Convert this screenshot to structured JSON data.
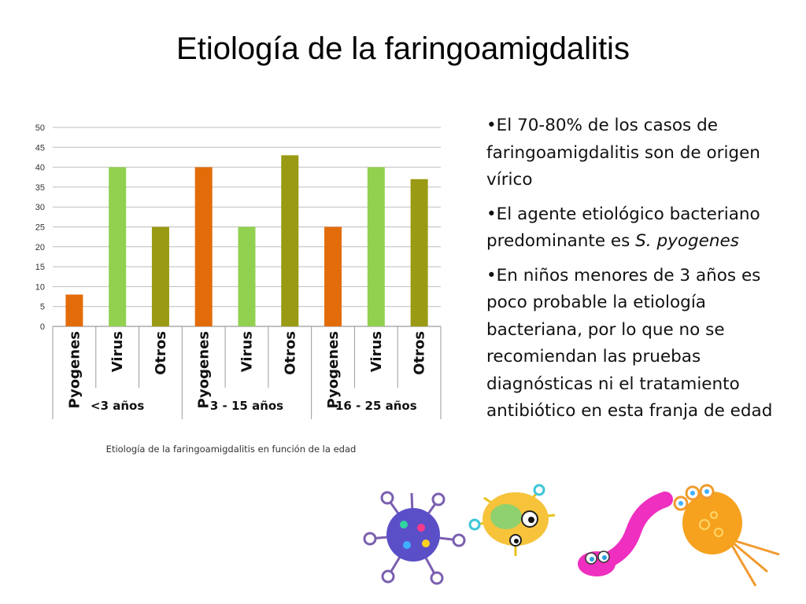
{
  "slide": {
    "title": "Etiología de la faringoamigdalitis"
  },
  "bullets": [
    {
      "text": "•El 70-80% de los casos de faringoamigdalitis son de origen vírico"
    },
    {
      "text": "•El agente etiológico bacteriano predominante es ",
      "emphasis": "S. pyogenes"
    },
    {
      "text": "•En niños menores de 3 años es poco probable la etiología bacteriana, por lo que no se recomiendan las pruebas diagnósticas ni el tratamiento antibiótico en esta franja de edad"
    }
  ],
  "chart_data": {
    "type": "bar",
    "title": "",
    "xlabel": "Etiología de la faringoamigdalitis en  función de la edad",
    "ylabel": "",
    "ylim": [
      0,
      50
    ],
    "yticks": [
      0,
      5,
      10,
      15,
      20,
      25,
      30,
      35,
      40,
      45,
      50
    ],
    "grid": true,
    "groups": [
      "<3 años",
      "3 - 15 años",
      "16 - 25 años"
    ],
    "categories": [
      "Pyogenes",
      "Virus",
      "Otros",
      "Pyogenes",
      "Virus",
      "Otros",
      "Pyogenes",
      "Virus",
      "Otros"
    ],
    "values": [
      8,
      40,
      25,
      40,
      25,
      43,
      25,
      40,
      37
    ],
    "colors": [
      "#E36C0A",
      "#92D050",
      "#9A9A14",
      "#E36C0A",
      "#92D050",
      "#9A9A14",
      "#E36C0A",
      "#92D050",
      "#9A9A14"
    ]
  },
  "decorations": {
    "icons": [
      "purple-germ-icon",
      "yellow-germ-icon",
      "pink-worm-germ-icon",
      "orange-germ-icon"
    ]
  }
}
